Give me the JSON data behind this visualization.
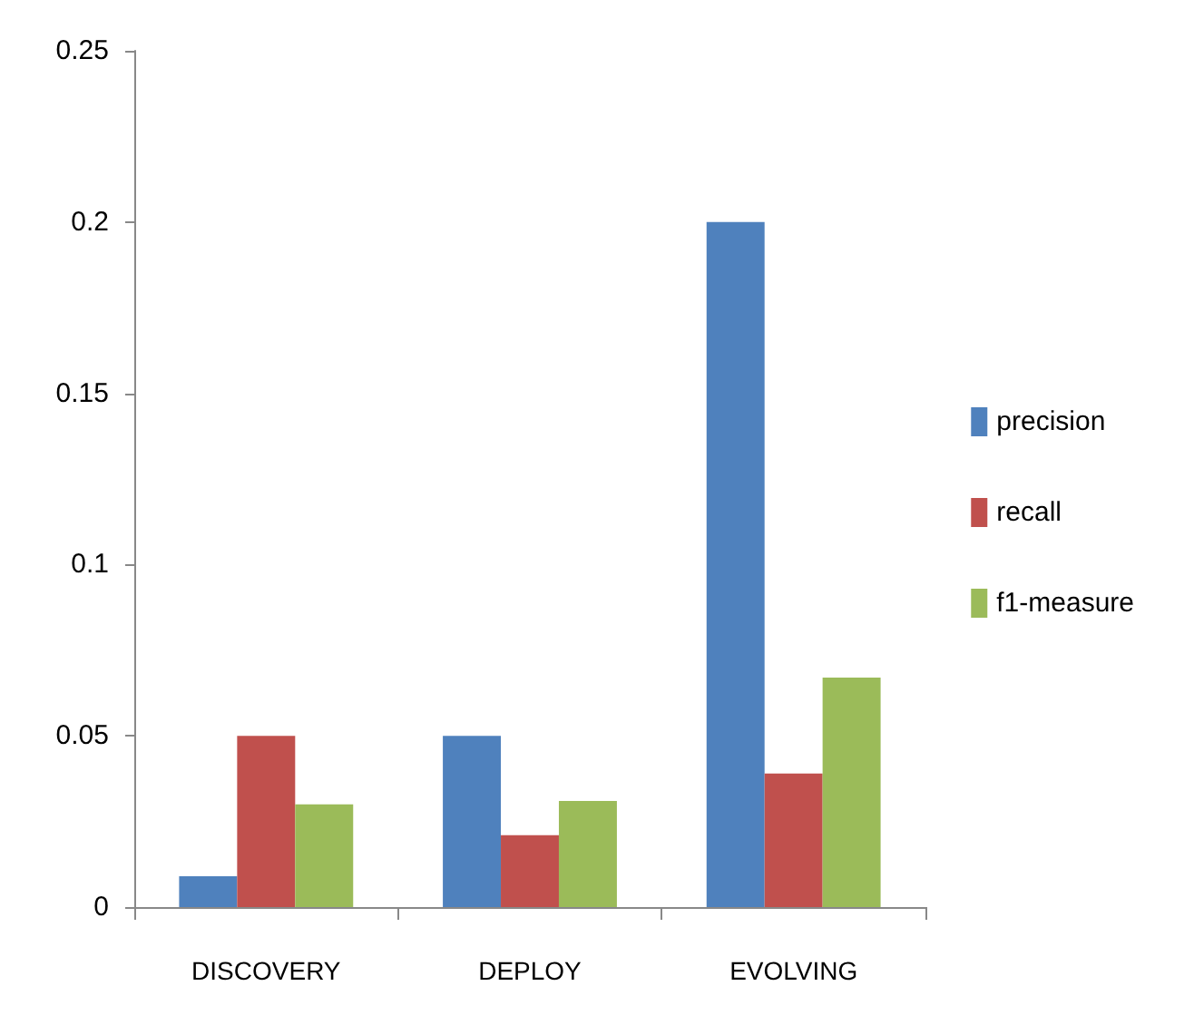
{
  "chart_data": {
    "type": "bar",
    "categories": [
      "DISCOVERY",
      "DEPLOY",
      "EVOLVING"
    ],
    "series": [
      {
        "name": "precision",
        "color": "#4f81bd",
        "values": [
          0.009,
          0.05,
          0.2
        ]
      },
      {
        "name": "recall",
        "color": "#c0504d",
        "values": [
          0.05,
          0.021,
          0.039
        ]
      },
      {
        "name": "f1-measure",
        "color": "#9bbb59",
        "values": [
          0.03,
          0.031,
          0.067
        ]
      }
    ],
    "ylim": [
      0,
      0.25
    ],
    "yticks": [
      0,
      0.05,
      0.1,
      0.15,
      0.2,
      0.25
    ],
    "grid": false,
    "legend": "right"
  }
}
